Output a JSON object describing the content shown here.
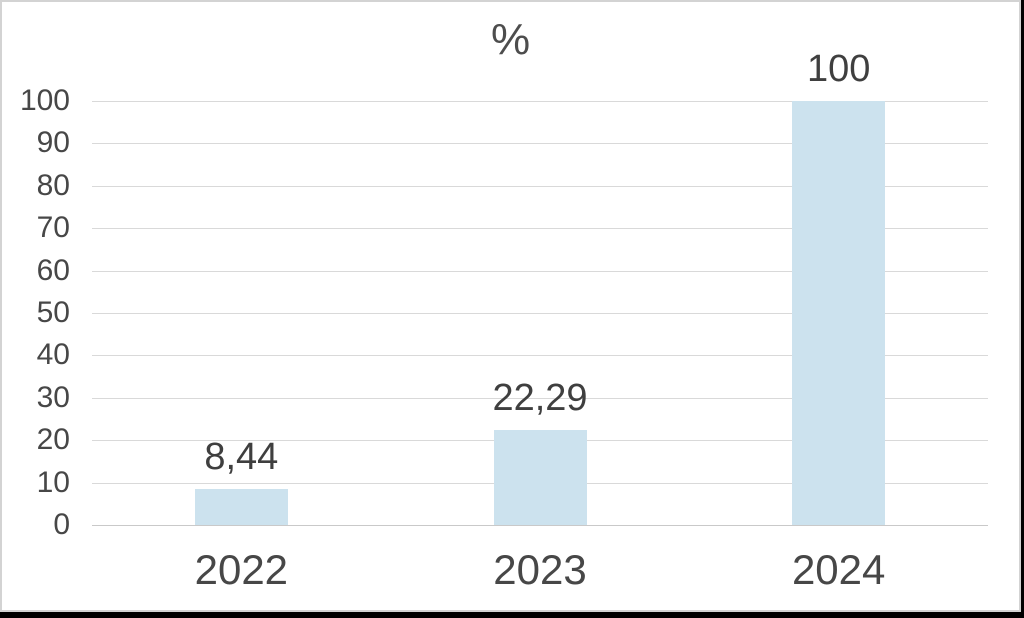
{
  "chart_data": {
    "type": "bar",
    "title": "%",
    "categories": [
      "2022",
      "2023",
      "2024"
    ],
    "values": [
      8.44,
      22.29,
      100
    ],
    "value_labels": [
      "8,44",
      "22,29",
      "100"
    ],
    "xlabel": "",
    "ylabel": "",
    "ylim": [
      0,
      100
    ],
    "yticks": [
      0,
      10,
      20,
      30,
      40,
      50,
      60,
      70,
      80,
      90,
      100
    ],
    "grid": "horizontal",
    "legend": "none",
    "bar_color": "#cce2ee",
    "gridline_color": "#d9d9d9",
    "axis_line_color": "#c9c9c9",
    "tick_text_color": "#474747",
    "label_text_color": "#3f3f3f",
    "title_text_color": "#4d4d4d"
  }
}
